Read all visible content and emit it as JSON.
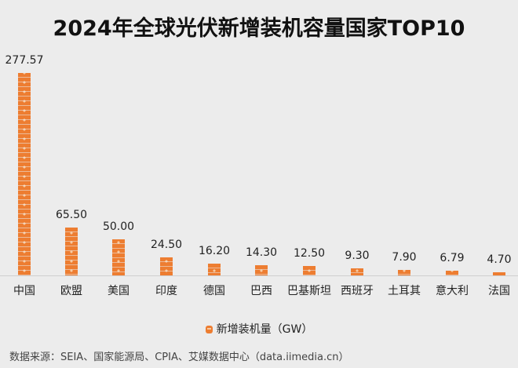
{
  "title": "2024年全球光伏新增装机容量国家TOP10",
  "legend": {
    "icon": "solar-unit-icon",
    "label": "新增装机量（GW）"
  },
  "source": "数据来源：SEIA、国家能源局、CPIA、艾媒数据中心（data.iimedia.cn）",
  "colors": {
    "bar": "#ed7d31",
    "background": "#ececec",
    "axis": "#cfcfcf"
  },
  "items": [
    {
      "category": "中国",
      "value": "277.57"
    },
    {
      "category": "欧盟",
      "value": "65.50"
    },
    {
      "category": "美国",
      "value": "50.00"
    },
    {
      "category": "印度",
      "value": "24.50"
    },
    {
      "category": "德国",
      "value": "16.20"
    },
    {
      "category": "巴西",
      "value": "14.30"
    },
    {
      "category": "巴基斯坦",
      "value": "12.50"
    },
    {
      "category": "西班牙",
      "value": "9.30"
    },
    {
      "category": "土耳其",
      "value": "7.90"
    },
    {
      "category": "意大利",
      "value": "6.79"
    },
    {
      "category": "法国",
      "value": "4.70"
    }
  ],
  "chart_data": {
    "type": "bar",
    "title": "2024年全球光伏新增装机容量国家TOP10",
    "categories": [
      "中国",
      "欧盟",
      "美国",
      "印度",
      "德国",
      "巴西",
      "巴基斯坦",
      "西班牙",
      "土耳其",
      "意大利",
      "法国"
    ],
    "series": [
      {
        "name": "新增装机量（GW）",
        "values": [
          277.57,
          65.5,
          50.0,
          24.5,
          16.2,
          14.3,
          12.5,
          9.3,
          7.9,
          6.79,
          4.7
        ]
      }
    ],
    "xlabel": "",
    "ylabel": "",
    "ylim": [
      0,
      277.57
    ],
    "grid": false,
    "legend_position": "bottom",
    "style": "pictograph stacked icons, data labels above bars"
  }
}
